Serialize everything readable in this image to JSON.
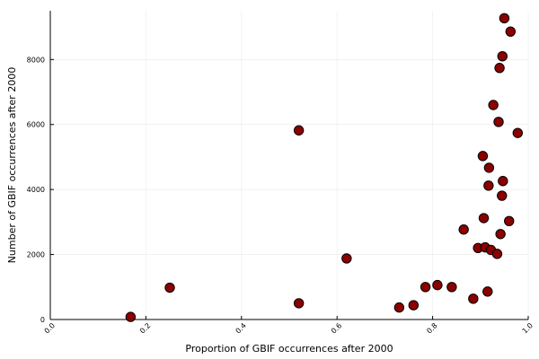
{
  "chart_data": {
    "type": "scatter",
    "title": "",
    "xlabel": "Proportion of GBIF occurrences after 2000",
    "ylabel": "Number of GBIF occurrences after 2000",
    "xlim": [
      0.0,
      1.0
    ],
    "ylim": [
      0,
      9500
    ],
    "x_ticks": [
      0.0,
      0.2,
      0.4,
      0.6,
      0.8,
      1.0
    ],
    "x_tick_labels": [
      "0.0",
      "0.2",
      "0.4",
      "0.6",
      "0.8",
      "1.0"
    ],
    "y_ticks": [
      0,
      2000,
      4000,
      6000,
      8000
    ],
    "y_tick_labels": [
      "0",
      "2000",
      "4000",
      "6000",
      "8000"
    ],
    "grid": true,
    "legend": "none",
    "marker_color": "#8b0000",
    "marker_edge_color": "#000000",
    "points": [
      {
        "x": 0.168,
        "y": 80
      },
      {
        "x": 0.25,
        "y": 980
      },
      {
        "x": 0.52,
        "y": 5820
      },
      {
        "x": 0.52,
        "y": 500
      },
      {
        "x": 0.62,
        "y": 1880
      },
      {
        "x": 0.73,
        "y": 370
      },
      {
        "x": 0.76,
        "y": 440
      },
      {
        "x": 0.785,
        "y": 1000
      },
      {
        "x": 0.81,
        "y": 1060
      },
      {
        "x": 0.84,
        "y": 1000
      },
      {
        "x": 0.865,
        "y": 2770
      },
      {
        "x": 0.885,
        "y": 640
      },
      {
        "x": 0.895,
        "y": 2200
      },
      {
        "x": 0.905,
        "y": 5030
      },
      {
        "x": 0.907,
        "y": 3120
      },
      {
        "x": 0.91,
        "y": 2220
      },
      {
        "x": 0.915,
        "y": 860
      },
      {
        "x": 0.917,
        "y": 4120
      },
      {
        "x": 0.918,
        "y": 4670
      },
      {
        "x": 0.922,
        "y": 2140
      },
      {
        "x": 0.927,
        "y": 6600
      },
      {
        "x": 0.935,
        "y": 2020
      },
      {
        "x": 0.938,
        "y": 6080
      },
      {
        "x": 0.94,
        "y": 7740
      },
      {
        "x": 0.942,
        "y": 2630
      },
      {
        "x": 0.945,
        "y": 3810
      },
      {
        "x": 0.946,
        "y": 8100
      },
      {
        "x": 0.947,
        "y": 4260
      },
      {
        "x": 0.95,
        "y": 9270
      },
      {
        "x": 0.96,
        "y": 3030
      },
      {
        "x": 0.963,
        "y": 8860
      },
      {
        "x": 0.978,
        "y": 5740
      }
    ]
  }
}
